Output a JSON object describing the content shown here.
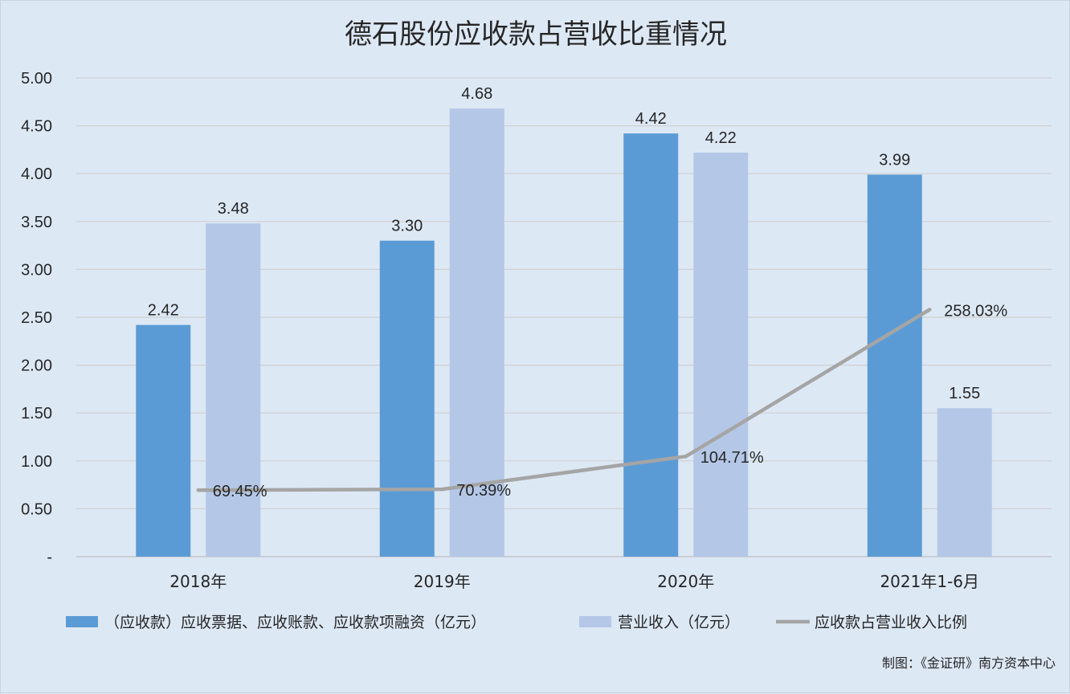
{
  "chart_data": {
    "type": "bar",
    "title": "德石股份应收款占营收比重情况",
    "categories": [
      "2018年",
      "2019年",
      "2020年",
      "2021年1-6月"
    ],
    "series": [
      {
        "name": "（应收款）应收票据、应收账款、应收款项融资（亿元）",
        "kind": "bar",
        "color": "#5b9bd5",
        "values": [
          2.42,
          3.3,
          4.42,
          3.99
        ],
        "labels": [
          "2.42",
          "3.30",
          "4.42",
          "3.99"
        ]
      },
      {
        "name": "营业收入（亿元）",
        "kind": "bar",
        "color": "#b4c7e7",
        "values": [
          3.48,
          4.68,
          4.22,
          1.55
        ],
        "labels": [
          "3.48",
          "4.68",
          "4.22",
          "1.55"
        ]
      },
      {
        "name": "应收款占营业收入比例",
        "kind": "line",
        "color": "#a5a5a5",
        "values": [
          69.45,
          70.39,
          104.71,
          258.03
        ],
        "labels": [
          "69.45%",
          "70.39%",
          "104.71%",
          "258.03%"
        ]
      }
    ],
    "yticks": [
      "-",
      "0.50",
      "1.00",
      "1.50",
      "2.00",
      "2.50",
      "3.00",
      "3.50",
      "4.00",
      "4.50",
      "5.00"
    ],
    "ylim": [
      0,
      5
    ],
    "line_ylim": [
      0,
      500
    ],
    "grid": true,
    "legend_position": "bottom",
    "credit": "制图：《金证研》南方资本中心"
  }
}
